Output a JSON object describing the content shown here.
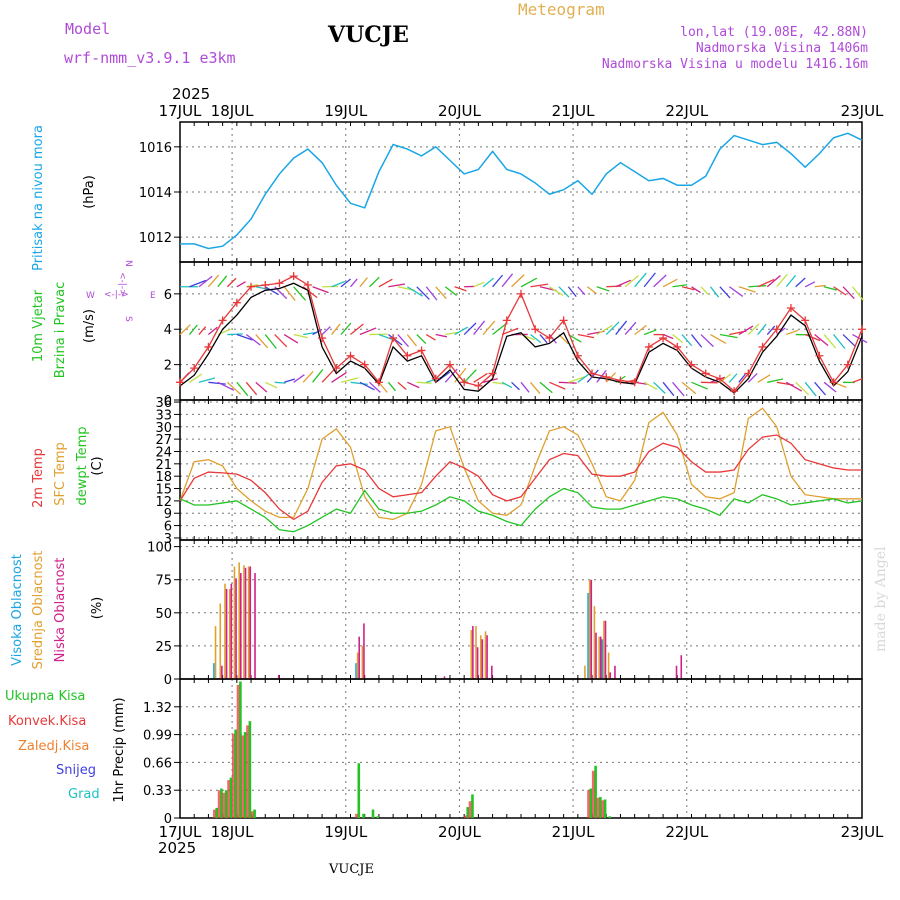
{
  "header": {
    "model_label": "Model",
    "model_name": "wrf-nmm_v3.9.1 e3km",
    "station": "VUCJE",
    "product": "Meteogram",
    "coords": "lon,lat (19.08E, 42.88N)",
    "elevation": "Nadmorska Visina 1406m",
    "model_elevation": "Nadmorska Visina u modelu 1416.16m",
    "year": "2025"
  },
  "footer": {
    "station": "VUCJE",
    "year": "2025",
    "watermark": "made by Angel"
  },
  "colors": {
    "pressure": "#1aa6e6",
    "wind_speed": "#e8383a",
    "wind_gust": "#000000",
    "temp2m": "#e8383a",
    "sfc_temp": "#e0a030",
    "dewpt": "#22c422",
    "high_cloud": "#1aa6e6",
    "mid_cloud": "#e0a030",
    "low_cloud": "#d0208a",
    "total_precip": "#22c422",
    "convective": "#e8383a",
    "frozen": "#f08030",
    "snow": "#4040e0",
    "hail": "#20c0c0"
  },
  "chart_data": [
    {
      "type": "line",
      "panel": "pressure",
      "ylabel_left": "Pritisak na nivou mora",
      "ylabel_unit": "(hPa)",
      "x_ticks": [
        "17JUL",
        "18JUL",
        "19JUL",
        "20JUL",
        "21JUL",
        "22JUL",
        "23JUL"
      ],
      "x_range_hours": [
        0,
        144
      ],
      "ylim": [
        1010.9,
        1017.1
      ],
      "y_ticks": [
        1012,
        1014,
        1016
      ],
      "series": [
        {
          "name": "Sea level pressure",
          "x": [
            0,
            3,
            6,
            9,
            12,
            15,
            18,
            21,
            24,
            27,
            30,
            33,
            36,
            39,
            42,
            45,
            48,
            51,
            54,
            57,
            60,
            63,
            66,
            69,
            72,
            75,
            78,
            81,
            84,
            87,
            90,
            93,
            96,
            99,
            102,
            105,
            108,
            111,
            114,
            117,
            120,
            123,
            126,
            129,
            132,
            135,
            138,
            141,
            144
          ],
          "values": [
            1011.7,
            1011.7,
            1011.5,
            1011.6,
            1012.1,
            1012.8,
            1013.9,
            1014.8,
            1015.5,
            1015.9,
            1015.3,
            1014.3,
            1013.5,
            1013.3,
            1014.9,
            1016.1,
            1015.9,
            1015.6,
            1016.0,
            1015.4,
            1014.8,
            1015.0,
            1015.8,
            1015.0,
            1014.8,
            1014.4,
            1013.9,
            1014.1,
            1014.5,
            1013.9,
            1014.8,
            1015.3,
            1014.9,
            1014.5,
            1014.6,
            1014.3,
            1014.3,
            1014.7,
            1015.9,
            1016.5,
            1016.3,
            1016.1,
            1016.2,
            1015.7,
            1015.1,
            1015.7,
            1016.4,
            1016.6,
            1016.3
          ]
        }
      ]
    },
    {
      "type": "line",
      "panel": "wind",
      "ylabel_left": "10m Vjetar",
      "ylabel_left2": "Brzina i Pravac",
      "ylabel_unit": "(m/s)",
      "compass": {
        "n": "N",
        "s": "S",
        "e": "E",
        "w": "W",
        "arrows": "<-|->"
      },
      "ylim": [
        0,
        7.8
      ],
      "y_ticks": [
        0,
        2,
        4,
        6
      ],
      "series": [
        {
          "name": "Wind speed",
          "x": [
            0,
            3,
            6,
            9,
            12,
            15,
            18,
            21,
            24,
            27,
            30,
            33,
            36,
            39,
            42,
            45,
            48,
            51,
            54,
            57,
            60,
            63,
            66,
            69,
            72,
            75,
            78,
            81,
            84,
            87,
            90,
            93,
            96,
            99,
            102,
            105,
            108,
            111,
            114,
            117,
            120,
            123,
            126,
            129,
            132,
            135,
            138,
            141,
            144
          ],
          "values": [
            1.0,
            1.8,
            3.0,
            4.5,
            5.5,
            6.4,
            6.5,
            6.6,
            7.0,
            6.5,
            3.5,
            1.8,
            2.5,
            2.0,
            1.0,
            3.5,
            2.5,
            2.8,
            1.2,
            2.0,
            1.0,
            0.8,
            1.5,
            4.5,
            6.0,
            4.0,
            3.5,
            4.5,
            2.5,
            1.5,
            1.3,
            1.1,
            1.0,
            3.0,
            3.5,
            3.0,
            2.0,
            1.5,
            1.2,
            0.5,
            1.5,
            3.0,
            4.0,
            5.2,
            4.5,
            2.5,
            1.0,
            2.0,
            4.0
          ]
        },
        {
          "name": "Wind gust",
          "x": [
            0,
            3,
            6,
            9,
            12,
            15,
            18,
            21,
            24,
            27,
            30,
            33,
            36,
            39,
            42,
            45,
            48,
            51,
            54,
            57,
            60,
            63,
            66,
            69,
            72,
            75,
            78,
            81,
            84,
            87,
            90,
            93,
            96,
            99,
            102,
            105,
            108,
            111,
            114,
            117,
            120,
            123,
            126,
            129,
            132,
            135,
            138,
            141,
            144
          ],
          "values": [
            0.8,
            1.4,
            2.6,
            4.0,
            4.8,
            5.8,
            6.2,
            6.3,
            6.6,
            6.2,
            3.0,
            1.5,
            2.2,
            1.8,
            0.9,
            3.0,
            2.2,
            2.5,
            1.0,
            1.7,
            0.6,
            0.5,
            1.2,
            3.6,
            3.8,
            3.0,
            3.2,
            3.8,
            2.2,
            1.3,
            1.2,
            1.0,
            0.9,
            2.7,
            3.2,
            2.8,
            1.8,
            1.3,
            1.0,
            0.4,
            1.2,
            2.7,
            3.6,
            4.8,
            4.2,
            2.2,
            0.8,
            1.6,
            3.6
          ]
        }
      ]
    },
    {
      "type": "line",
      "panel": "temperature",
      "ylabel_left": "2m Temp",
      "ylabel_left2": "SFC Temp",
      "ylabel_left3": "dewpt Temp",
      "ylabel_unit": "(C)",
      "ylim": [
        2.5,
        36.5
      ],
      "y_ticks": [
        3,
        6,
        9,
        12,
        15,
        18,
        21,
        24,
        27,
        30,
        33,
        36
      ],
      "series": [
        {
          "name": "2m Temp",
          "x": [
            0,
            3,
            6,
            9,
            12,
            15,
            18,
            21,
            24,
            27,
            30,
            33,
            36,
            39,
            42,
            45,
            48,
            51,
            54,
            57,
            60,
            63,
            66,
            69,
            72,
            75,
            78,
            81,
            84,
            87,
            90,
            93,
            96,
            99,
            102,
            105,
            108,
            111,
            114,
            117,
            120,
            123,
            126,
            129,
            132,
            135,
            138,
            141,
            144
          ],
          "values": [
            12.0,
            17.5,
            19.0,
            18.8,
            18.5,
            17.0,
            14.0,
            10.0,
            7.5,
            9.5,
            16.5,
            20.5,
            21.0,
            19.5,
            15.0,
            13.0,
            13.5,
            14.0,
            18.0,
            21.5,
            20.0,
            18.0,
            13.5,
            12.0,
            13.0,
            17.5,
            22.0,
            23.5,
            23.0,
            18.5,
            18.0,
            18.0,
            19.0,
            24.0,
            26.0,
            25.0,
            21.5,
            19.0,
            19.0,
            19.5,
            24.5,
            27.5,
            28.0,
            26.0,
            22.0,
            21.0,
            20.0,
            19.5,
            19.5
          ]
        },
        {
          "name": "SFC Temp",
          "x": [
            0,
            3,
            6,
            9,
            12,
            15,
            18,
            21,
            24,
            27,
            30,
            33,
            36,
            39,
            42,
            45,
            48,
            51,
            54,
            57,
            60,
            63,
            66,
            69,
            72,
            75,
            78,
            81,
            84,
            87,
            90,
            93,
            96,
            99,
            102,
            105,
            108,
            111,
            114,
            117,
            120,
            123,
            126,
            129,
            132,
            135,
            138,
            141,
            144
          ],
          "values": [
            12.0,
            21.5,
            22.0,
            20.5,
            15.0,
            12.0,
            9.5,
            8.0,
            8.0,
            15.0,
            27.0,
            29.5,
            25.0,
            13.0,
            8.0,
            7.5,
            9.0,
            16.0,
            29.0,
            30.0,
            20.0,
            12.0,
            9.0,
            8.5,
            11.0,
            20.5,
            29.0,
            30.0,
            28.0,
            21.0,
            13.0,
            12.0,
            17.0,
            31.0,
            33.5,
            28.0,
            16.0,
            13.0,
            12.5,
            14.0,
            32.0,
            34.5,
            30.0,
            18.0,
            13.5,
            13.0,
            12.5,
            12.5,
            12.5
          ]
        },
        {
          "name": "dewpt Temp",
          "x": [
            0,
            3,
            6,
            9,
            12,
            15,
            18,
            21,
            24,
            27,
            30,
            33,
            36,
            39,
            42,
            45,
            48,
            51,
            54,
            57,
            60,
            63,
            66,
            69,
            72,
            75,
            78,
            81,
            84,
            87,
            90,
            93,
            96,
            99,
            102,
            105,
            108,
            111,
            114,
            117,
            120,
            123,
            126,
            129,
            132,
            135,
            138,
            141,
            144
          ],
          "values": [
            12.5,
            11.0,
            11.0,
            11.5,
            12.0,
            10.0,
            8.0,
            5.0,
            4.5,
            6.0,
            8.0,
            10.0,
            9.0,
            14.5,
            10.0,
            9.0,
            9.0,
            9.5,
            11.0,
            13.0,
            12.0,
            9.5,
            8.5,
            7.0,
            6.0,
            10.0,
            13.0,
            15.0,
            14.0,
            10.5,
            10.0,
            10.0,
            11.0,
            12.0,
            13.0,
            12.5,
            11.0,
            10.0,
            8.5,
            12.5,
            11.5,
            13.5,
            12.5,
            11.0,
            11.5,
            12.0,
            12.5,
            11.5,
            12.0
          ]
        }
      ]
    },
    {
      "type": "bar",
      "panel": "clouds",
      "ylabel_left": "Visoka Oblacnost",
      "ylabel_left2": "Srednja Oblacnost",
      "ylabel_left3": "Niska Oblacnost",
      "ylabel_unit": "(%)",
      "ylim": [
        0,
        105
      ],
      "y_ticks": [
        0,
        25,
        50,
        75,
        100
      ],
      "series": [
        {
          "name": "Visoka Oblacnost",
          "x": [
            7,
            37,
            86,
            89
          ],
          "values": [
            12,
            12,
            65,
            30
          ]
        },
        {
          "name": "Srednja Oblacnost",
          "x": [
            7,
            8,
            9,
            10,
            11,
            12,
            13,
            14,
            37,
            38,
            61,
            62,
            63,
            64,
            85,
            86,
            87,
            88,
            89,
            90
          ],
          "values": [
            40,
            57,
            72,
            68,
            85,
            88,
            86,
            85,
            20,
            25,
            37,
            40,
            33,
            36,
            10,
            75,
            55,
            32,
            44,
            20
          ]
        },
        {
          "name": "Niska Oblacnost",
          "x": [
            8,
            9,
            10,
            11,
            12,
            13,
            14,
            15,
            20,
            37,
            38,
            55,
            61,
            62,
            63,
            64,
            65,
            86,
            87,
            88,
            89,
            90,
            91,
            104,
            105
          ],
          "values": [
            10,
            68,
            72,
            76,
            80,
            84,
            85,
            80,
            3,
            32,
            42,
            2,
            40,
            24,
            30,
            33,
            10,
            75,
            35,
            32,
            44,
            5,
            10,
            10,
            18
          ]
        }
      ]
    },
    {
      "type": "bar",
      "panel": "precipitation",
      "ylabel_left": "Ukupna Kisa",
      "ylabel_left2": "Konvek.Kisa",
      "ylabel_left3": "Zaledj.Kisa",
      "ylabel_left4": "Snijeg",
      "ylabel_left5": "Grad",
      "ylabel_unit": "1hr Precip (mm)",
      "ylim": [
        0,
        1.65
      ],
      "y_ticks": [
        0,
        0.33,
        0.66,
        0.99,
        1.32
      ],
      "y_tick_labels": [
        "0",
        "0.33",
        "0.66",
        "0.99",
        "1.32"
      ],
      "series": [
        {
          "name": "Ukupna Kisa",
          "x": [
            7,
            8,
            9,
            10,
            11,
            12,
            13,
            14,
            15,
            37,
            38,
            40,
            41,
            60,
            61,
            86,
            87,
            88,
            89,
            90
          ],
          "values": [
            0.12,
            0.35,
            0.33,
            0.48,
            1.05,
            1.62,
            1.02,
            1.15,
            0.1,
            0.65,
            0.05,
            0.1,
            0.02,
            0.13,
            0.28,
            0.35,
            0.62,
            0.25,
            0.22,
            0.02
          ]
        },
        {
          "name": "Konvek.Kisa",
          "x": [
            7,
            8,
            9,
            10,
            11,
            12,
            13,
            14,
            15,
            37,
            60,
            61,
            86,
            87,
            88,
            89
          ],
          "values": [
            0.1,
            0.33,
            0.3,
            0.45,
            1.0,
            1.58,
            0.98,
            1.1,
            0.08,
            0.05,
            0.03,
            0.2,
            0.33,
            0.56,
            0.24,
            0.21
          ]
        }
      ]
    }
  ]
}
